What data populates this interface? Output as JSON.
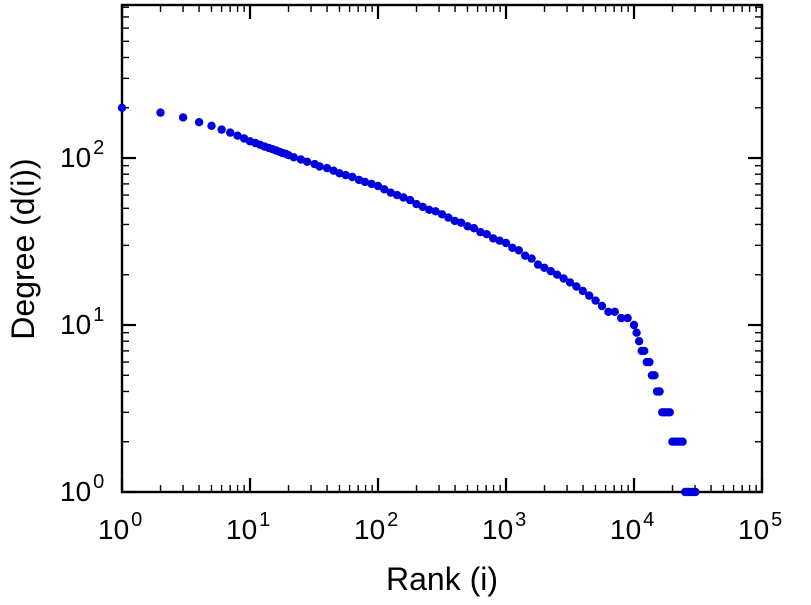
{
  "figure": {
    "colors": {
      "background": "#ffffff",
      "point": "#0000dd",
      "axis": "#000000"
    },
    "tick_label_base": "10"
  },
  "chart_data": {
    "type": "scatter",
    "title": "",
    "xlabel": "Rank (i)",
    "ylabel": "Degree (d(i))",
    "x_scale": "log",
    "y_scale": "log",
    "xlim": [
      1,
      100000
    ],
    "ylim": [
      1,
      825
    ],
    "grid": false,
    "legend": "none",
    "x_tick_exponents": [
      0,
      1,
      2,
      3,
      4,
      5
    ],
    "y_tick_exponents": [
      0,
      1,
      2
    ],
    "points": [
      [
        1,
        200
      ],
      [
        2,
        187
      ],
      [
        3,
        175
      ],
      [
        4,
        164
      ],
      [
        5,
        156
      ],
      [
        6,
        148
      ],
      [
        7,
        142
      ],
      [
        8,
        136
      ],
      [
        9,
        131
      ],
      [
        10,
        126
      ],
      [
        11,
        123
      ],
      [
        12,
        120
      ],
      [
        13,
        117
      ],
      [
        14,
        115
      ],
      [
        15,
        113
      ],
      [
        16,
        111
      ],
      [
        17,
        109
      ],
      [
        18,
        107
      ],
      [
        19,
        106
      ],
      [
        20,
        104
      ],
      [
        22,
        101
      ],
      [
        25,
        98
      ],
      [
        28,
        95
      ],
      [
        32,
        92
      ],
      [
        35,
        89
      ],
      [
        40,
        87
      ],
      [
        45,
        84
      ],
      [
        50,
        81
      ],
      [
        56,
        79
      ],
      [
        63,
        77
      ],
      [
        71,
        74
      ],
      [
        79,
        72
      ],
      [
        89,
        70
      ],
      [
        100,
        68
      ],
      [
        112,
        65
      ],
      [
        126,
        62
      ],
      [
        141,
        60
      ],
      [
        158,
        58
      ],
      [
        178,
        56
      ],
      [
        200,
        53
      ],
      [
        224,
        51
      ],
      [
        251,
        49
      ],
      [
        282,
        48
      ],
      [
        316,
        46
      ],
      [
        355,
        44
      ],
      [
        398,
        42
      ],
      [
        447,
        41
      ],
      [
        501,
        39
      ],
      [
        562,
        38
      ],
      [
        631,
        36
      ],
      [
        708,
        35
      ],
      [
        794,
        33
      ],
      [
        891,
        32
      ],
      [
        1000,
        31
      ],
      [
        1122,
        29
      ],
      [
        1259,
        28
      ],
      [
        1413,
        26
      ],
      [
        1585,
        25
      ],
      [
        1778,
        23
      ],
      [
        1995,
        22
      ],
      [
        2239,
        21
      ],
      [
        2512,
        20
      ],
      [
        2818,
        19
      ],
      [
        3162,
        18
      ],
      [
        3548,
        17
      ],
      [
        3981,
        16
      ],
      [
        4467,
        15
      ],
      [
        5012,
        14
      ],
      [
        5623,
        13
      ],
      [
        6310,
        12
      ],
      [
        7079,
        12
      ],
      [
        7943,
        11
      ],
      [
        8913,
        11
      ],
      [
        10000,
        10
      ],
      [
        10471,
        9
      ],
      [
        10965,
        8
      ],
      [
        11482,
        7
      ],
      [
        12023,
        7
      ],
      [
        12589,
        6
      ],
      [
        13183,
        6
      ],
      [
        13804,
        5
      ],
      [
        14454,
        5
      ],
      [
        15136,
        4
      ],
      [
        15849,
        4
      ],
      [
        16596,
        3
      ],
      [
        17378,
        3
      ],
      [
        18197,
        3
      ],
      [
        19055,
        3
      ],
      [
        19953,
        2
      ],
      [
        20893,
        2
      ],
      [
        21878,
        2
      ],
      [
        22909,
        2
      ],
      [
        23988,
        2
      ],
      [
        25119,
        1
      ],
      [
        26303,
        1
      ],
      [
        27542,
        1
      ],
      [
        28840,
        1
      ],
      [
        30200,
        1
      ]
    ]
  }
}
